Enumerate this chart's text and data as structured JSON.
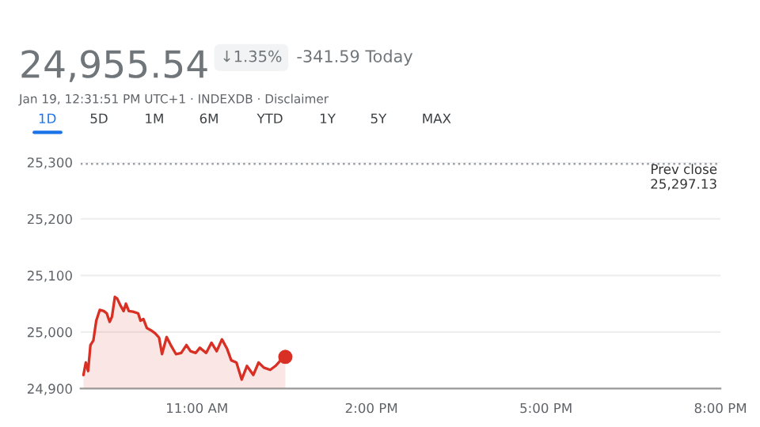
{
  "chart_data": {
    "type": "area",
    "title": "24,955.54",
    "subtitle": "Jan 19, 12:31:51 PM UTC+1 · INDEXDB · Disclaimer",
    "annotations": [
      "↓1.35%",
      "-341.59 Today",
      "1D",
      "5D",
      "1M",
      "6M",
      "YTD",
      "1Y",
      "5Y",
      "MAX"
    ],
    "series": [
      {
        "color": "#d93025",
        "x": [
          9.05,
          9.09,
          9.13,
          9.17,
          9.22,
          9.27,
          9.33,
          9.4,
          9.45,
          9.5,
          9.54,
          9.59,
          9.63,
          9.69,
          9.74,
          9.78,
          9.83,
          9.9,
          9.99,
          10.03,
          10.08,
          10.14,
          10.21,
          10.28,
          10.35,
          10.4,
          10.48,
          10.55,
          10.64,
          10.73,
          10.82,
          10.89,
          10.98,
          11.05,
          11.16,
          11.25,
          11.34,
          11.43,
          11.52,
          11.59,
          11.68,
          11.77,
          11.86,
          11.97,
          12.06,
          12.15,
          12.26,
          12.35,
          12.44,
          12.52
        ],
        "values": [
          24924,
          24946,
          24931,
          24977,
          24985,
          25020,
          25039,
          25037,
          25033,
          25018,
          25027,
          25062,
          25059,
          25046,
          25037,
          25050,
          25037,
          25036,
          25033,
          25020,
          25023,
          25007,
          25003,
          24998,
          24990,
          24961,
          24991,
          24977,
          24961,
          24963,
          24977,
          24966,
          24963,
          24972,
          24963,
          24981,
          24966,
          24987,
          24970,
          24950,
          24946,
          24916,
          24940,
          24924,
          24946,
          24937,
          24933,
          24940,
          24950,
          24956
        ]
      },
      {
        "type": "scatter",
        "color": "#d93025",
        "marker": "circle",
        "x": [
          12.52
        ],
        "values": [
          24956
        ]
      }
    ],
    "xlim": [
      9,
      20
    ],
    "xticks": [
      {
        "value": 11,
        "label": "11:00 AM"
      },
      {
        "value": 14,
        "label": "2:00 PM"
      },
      {
        "value": 17,
        "label": "5:00 PM"
      },
      {
        "value": 20,
        "label": "8:00 PM"
      }
    ],
    "ylim": [
      24900,
      25300
    ],
    "yticks": [
      {
        "value": 24900,
        "label": "24,900"
      },
      {
        "value": 25000,
        "label": "25,000"
      },
      {
        "value": 25100,
        "label": "25,100"
      },
      {
        "value": 25200,
        "label": "25,200"
      },
      {
        "value": 25300,
        "label": "25,300"
      }
    ],
    "ref_lines": [
      {
        "axis": "y",
        "value": 25297.13,
        "label": "Prev close\n25,297.13",
        "line_style": "dotted",
        "color": "#9aa0a6"
      }
    ],
    "grid": "y",
    "legend": false,
    "marker": "none",
    "line_style": "solid"
  }
}
